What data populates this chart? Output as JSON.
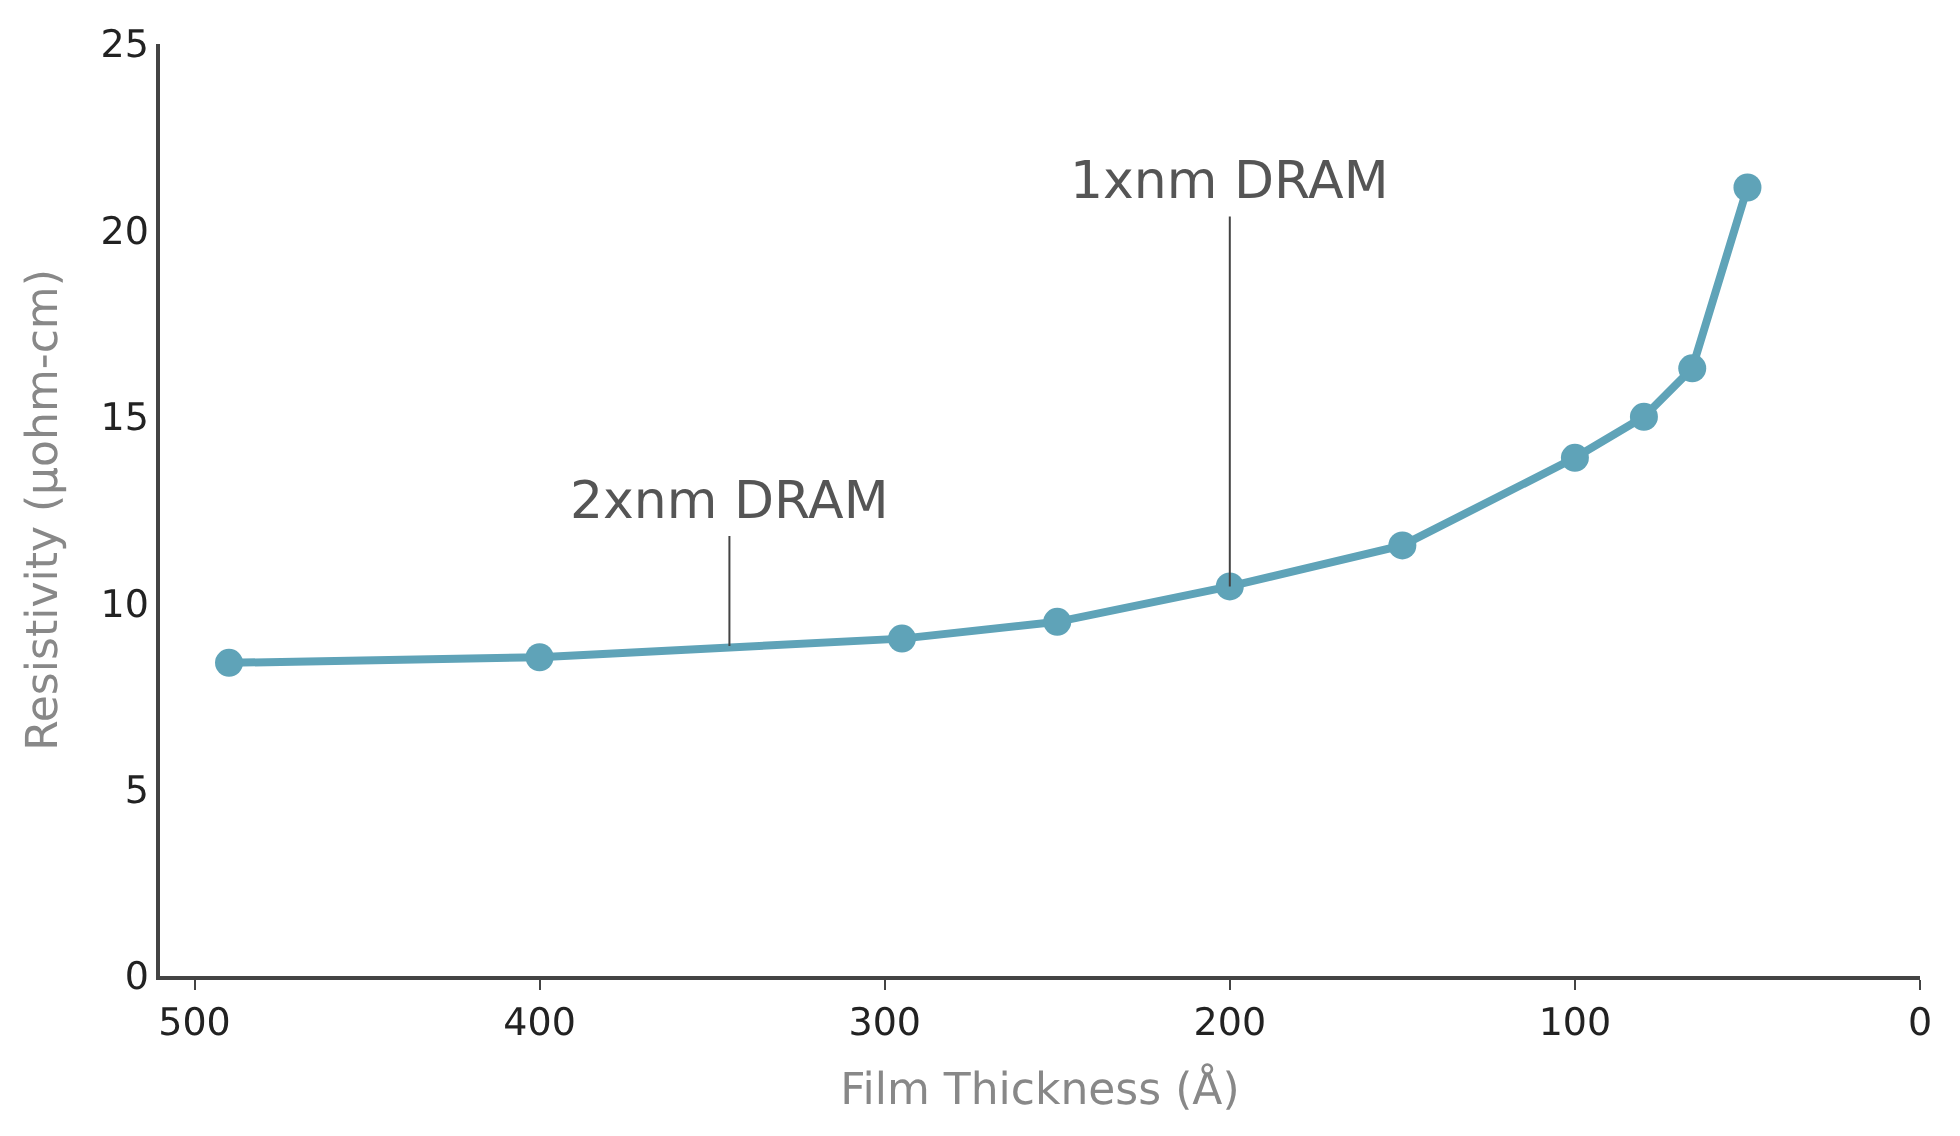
{
  "chart_data": {
    "type": "line",
    "xlabel": "Film Thickness (Å)",
    "ylabel": "Resistivity (μohm-cm)",
    "x": [
      490,
      400,
      295,
      250,
      200,
      150,
      100,
      80,
      66,
      50
    ],
    "series": [
      {
        "color": "#5fa3b8",
        "values": [
          8.4,
          8.55,
          9.05,
          9.5,
          10.45,
          11.55,
          13.9,
          15.0,
          16.3,
          21.15
        ]
      }
    ],
    "xlim": [
      510,
      0
    ],
    "xticks": [
      500,
      400,
      300,
      200,
      100,
      0
    ],
    "ylim": [
      0,
      25
    ],
    "yticks": [
      0,
      5,
      10,
      15,
      20,
      25
    ],
    "marker": "circle",
    "line_style": "solid",
    "annotations": [
      {
        "text": "2xnm DRAM",
        "x": 345,
        "y": 8.85
      },
      {
        "text": "1xnm DRAM",
        "x": 200,
        "y": 10.45
      }
    ]
  }
}
